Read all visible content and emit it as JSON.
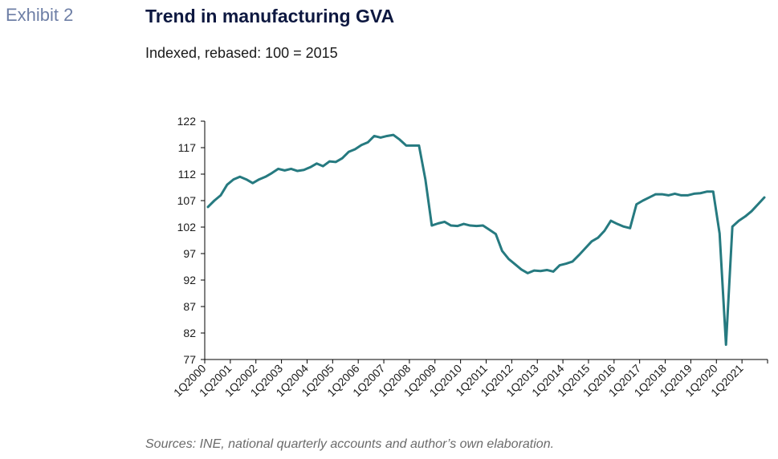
{
  "header": {
    "exhibit": "Exhibit 2",
    "title": "Trend in manufacturing GVA",
    "subtitle": "Indexed, rebased: 100 = 2015"
  },
  "footer": {
    "source": "Sources: INE, national quarterly accounts and author’s own elaboration."
  },
  "colors": {
    "line": "#267a80",
    "axis": "#000000",
    "title": "#0d1840",
    "exhibit": "#6e7fa6"
  },
  "chart_data": {
    "type": "line",
    "title": "Trend in manufacturing GVA",
    "subtitle": "Indexed, rebased: 100 = 2015",
    "xlabel": "",
    "ylabel": "",
    "ylim": [
      77,
      122
    ],
    "yticks": [
      77,
      82,
      87,
      92,
      97,
      102,
      107,
      112,
      117,
      122
    ],
    "grid": false,
    "legend": "none",
    "x_tick_labels": [
      "1Q2000",
      "1Q2001",
      "1Q2002",
      "1Q2003",
      "1Q2004",
      "1Q2005",
      "1Q2006",
      "1Q2007",
      "1Q2008",
      "1Q2009",
      "1Q2010",
      "1Q2011",
      "1Q2012",
      "1Q2013",
      "1Q2014",
      "1Q2015",
      "1Q2016",
      "1Q2017",
      "1Q2018",
      "1Q2019",
      "1Q2020",
      "1Q2021"
    ],
    "series": [
      {
        "values": [
          105.8,
          107.0,
          108.0,
          110.0,
          111.0,
          111.5,
          111.0,
          110.3,
          111.0,
          111.5,
          112.2,
          113.0,
          112.7,
          113.0,
          112.6,
          112.8,
          113.3,
          114.0,
          113.5,
          114.4,
          114.3,
          115.0,
          116.2,
          116.7,
          117.5,
          118.0,
          119.2,
          118.9,
          119.2,
          119.4,
          118.5,
          117.4,
          117.4,
          117.4,
          111.0,
          102.3,
          102.7,
          103.0,
          102.3,
          102.2,
          102.6,
          102.3,
          102.2,
          102.3,
          101.5,
          100.7,
          97.5,
          96.0,
          95.0,
          94.0,
          93.3,
          93.8,
          93.7,
          93.9,
          93.6,
          94.8,
          95.1,
          95.5,
          96.7,
          98.0,
          99.3,
          100.0,
          101.3,
          103.2,
          102.6,
          102.1,
          101.8,
          106.3,
          107.0,
          107.6,
          108.2,
          108.2,
          108.0,
          108.3,
          108.0,
          108.0,
          108.3,
          108.4,
          108.7,
          108.7,
          100.8,
          79.8,
          102.1,
          103.2,
          104.0,
          105.0,
          106.3,
          107.6
        ]
      }
    ]
  }
}
